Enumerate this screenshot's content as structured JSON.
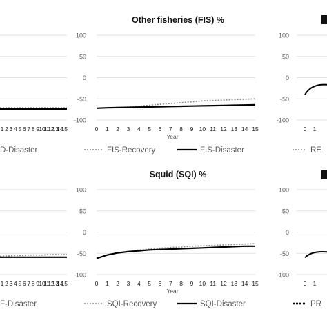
{
  "figure": {
    "axis_ticks": [
      "100",
      "50",
      "0",
      "-50",
      "-100"
    ],
    "year_ticks": [
      "0",
      "1",
      "2",
      "3",
      "4",
      "5",
      "6",
      "7",
      "8",
      "9",
      "10",
      "11",
      "12",
      "13",
      "14",
      "15"
    ]
  },
  "chart_data": [
    {
      "id": "fis",
      "type": "line",
      "title": "Other fisheries (FIS) %",
      "xlabel": "Year",
      "ylabel": "",
      "ylim": [
        -100,
        100
      ],
      "xlim": [
        0,
        15
      ],
      "grid": true,
      "legend": "bottom",
      "x": [
        0,
        1,
        2,
        3,
        4,
        5,
        6,
        7,
        8,
        9,
        10,
        11,
        12,
        13,
        14,
        15
      ],
      "series": [
        {
          "name": "FIS-Recovery",
          "style": "dotted",
          "color": "#8c8c8c",
          "values": [
            -72,
            -71,
            -70,
            -69,
            -67,
            -65,
            -63,
            -61,
            -59,
            -57,
            -55,
            -54,
            -53,
            -52,
            -51,
            -50
          ]
        },
        {
          "name": "FIS-Disaster",
          "style": "solid",
          "color": "#000000",
          "values": [
            -72,
            -71,
            -70.5,
            -70,
            -69.5,
            -69,
            -68.5,
            -68,
            -67.5,
            -67,
            -66.5,
            -66,
            -65.5,
            -65,
            -64.5,
            -64
          ]
        }
      ]
    },
    {
      "id": "sqi",
      "type": "line",
      "title": "Squid (SQI) %",
      "xlabel": "Year",
      "ylabel": "",
      "ylim": [
        -100,
        100
      ],
      "xlim": [
        0,
        15
      ],
      "grid": true,
      "legend": "bottom",
      "x": [
        0,
        1,
        2,
        3,
        4,
        5,
        6,
        7,
        8,
        9,
        10,
        11,
        12,
        13,
        14,
        15
      ],
      "series": [
        {
          "name": "SQI-Recovery",
          "style": "dotted",
          "color": "#8c8c8c",
          "values": [
            -62,
            -54,
            -49,
            -45,
            -42,
            -40,
            -38,
            -36,
            -35,
            -33,
            -32,
            -31,
            -30,
            -29,
            -28,
            -27
          ]
        },
        {
          "name": "SQI-Disaster",
          "style": "solid",
          "color": "#000000",
          "values": [
            -62,
            -54,
            -49,
            -46,
            -44,
            -42,
            -41,
            -40,
            -39,
            -38,
            -37,
            -36,
            -35,
            -34,
            -33,
            -33
          ]
        }
      ]
    }
  ],
  "left_partial": {
    "top": {
      "x_ticks": [
        "1",
        "2",
        "3",
        "4",
        "5",
        "6",
        "7",
        "8",
        "9",
        "10",
        "11",
        "12",
        "13",
        "14",
        "15"
      ],
      "legend_fragment": "D-Disaster",
      "recovery_values": [
        -71,
        -71,
        -71,
        -71,
        -71,
        -71,
        -71,
        -71,
        -71,
        -71,
        -71,
        -71,
        -71,
        -71,
        -71
      ],
      "disaster_values": [
        -74,
        -74,
        -74,
        -74,
        -74,
        -74,
        -74,
        -74,
        -74,
        -74,
        -74,
        -74,
        -74,
        -74,
        -74
      ]
    },
    "bottom": {
      "x_ticks": [
        "1",
        "2",
        "3",
        "4",
        "5",
        "6",
        "7",
        "8",
        "9",
        "10",
        "11",
        "12",
        "13",
        "14",
        "15"
      ],
      "legend_fragment": "F-Disaster",
      "recovery_values": [
        -57,
        -56,
        -56,
        -55,
        -55,
        -55,
        -54,
        -54,
        -54,
        -54,
        -53,
        -53,
        -53,
        -53,
        -53
      ],
      "disaster_values": [
        -59,
        -59,
        -59,
        -59,
        -59,
        -59,
        -59,
        -59,
        -59,
        -59,
        -59,
        -59,
        -59,
        -59,
        -59
      ]
    }
  },
  "right_partial": {
    "top": {
      "x_ticks": [
        "0",
        "1"
      ],
      "legend_fragment": "RE",
      "values": [
        -40,
        -20
      ]
    },
    "bottom": {
      "x_ticks": [
        "0",
        "1"
      ],
      "legend_fragment": "PR",
      "values": [
        -60,
        -50
      ]
    }
  }
}
